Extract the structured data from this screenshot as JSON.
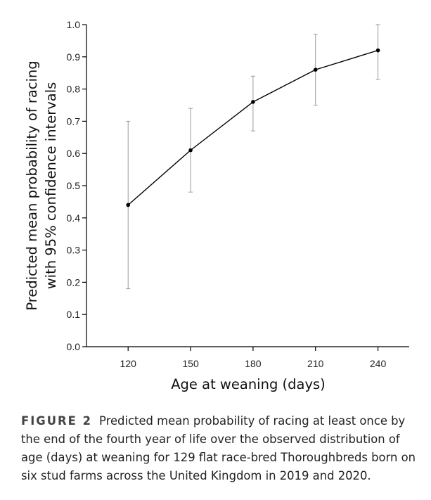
{
  "chart_data": {
    "type": "line",
    "title": "",
    "xlabel": "Age at weaning (days)",
    "ylabel_line1": "Predicted mean probability of racing",
    "ylabel_line2": "with 95% confidence intervals",
    "x": [
      120,
      150,
      180,
      210,
      240
    ],
    "series": [
      {
        "name": "Predicted mean probability",
        "values": [
          0.44,
          0.61,
          0.76,
          0.86,
          0.92
        ],
        "ci_lower": [
          0.18,
          0.48,
          0.67,
          0.75,
          0.83
        ],
        "ci_upper": [
          0.7,
          0.74,
          0.84,
          0.97,
          1.0
        ]
      }
    ],
    "xlim": [
      100,
      255
    ],
    "ylim": [
      0.0,
      1.0
    ],
    "xticks": [
      "120",
      "150",
      "180",
      "210",
      "240"
    ],
    "yticks": [
      "0.0",
      "0.1",
      "0.2",
      "0.3",
      "0.4",
      "0.5",
      "0.6",
      "0.7",
      "0.8",
      "0.9",
      "1.0"
    ],
    "grid": false,
    "line_color": "#000000",
    "errorbar_color": "#999999"
  },
  "caption": {
    "label": "FIGURE 2",
    "text": "Predicted mean probability of racing at least once by the end of the fourth year of life over the observed distribution of age (days) at weaning for 129 flat race-bred Thoroughbreds born on six stud farms across the United Kingdom in 2019 and 2020."
  }
}
